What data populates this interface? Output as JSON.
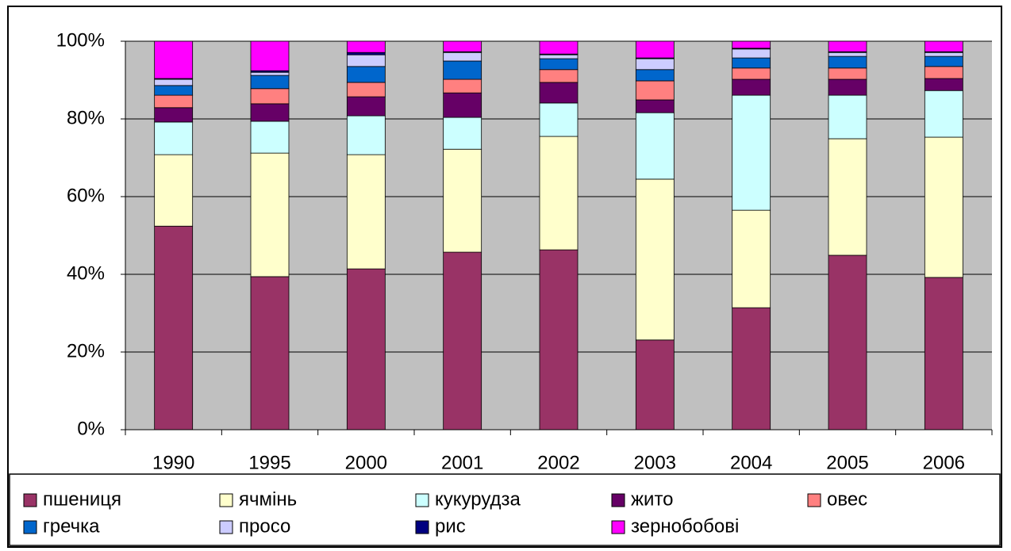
{
  "chart_data": {
    "type": "stacked_bar_100",
    "categories": [
      "1990",
      "1995",
      "2000",
      "2001",
      "2002",
      "2003",
      "2004",
      "2005",
      "2006"
    ],
    "series": [
      {
        "name": "пшениця",
        "color": "#993366",
        "values": [
          52.4,
          39.4,
          41.4,
          45.7,
          46.3,
          23.1,
          31.4,
          44.9,
          39.2
        ]
      },
      {
        "name": "ячмінь",
        "color": "#ffffcc",
        "values": [
          18.4,
          31.8,
          29.4,
          26.5,
          29.2,
          41.4,
          25.1,
          30.0,
          36.1
        ]
      },
      {
        "name": "кукурудза",
        "color": "#ccffff",
        "values": [
          8.4,
          8.2,
          10.0,
          8.2,
          8.6,
          17.1,
          29.6,
          11.2,
          12.0
        ]
      },
      {
        "name": "жито",
        "color": "#660066",
        "values": [
          3.7,
          4.5,
          4.9,
          6.3,
          5.3,
          3.3,
          4.1,
          4.1,
          3.1
        ]
      },
      {
        "name": "овес",
        "color": "#ff8080",
        "values": [
          3.2,
          3.9,
          3.7,
          3.5,
          3.3,
          4.9,
          2.9,
          2.9,
          3.1
        ]
      },
      {
        "name": "гречка",
        "color": "#0066cc",
        "values": [
          2.5,
          3.4,
          4.1,
          4.7,
          2.8,
          2.9,
          2.6,
          3.0,
          2.6
        ]
      },
      {
        "name": "просо",
        "color": "#ccccff",
        "values": [
          1.6,
          0.8,
          3.0,
          2.2,
          1.0,
          2.8,
          2.3,
          1.0,
          1.0
        ]
      },
      {
        "name": "рис",
        "color": "#000080",
        "values": [
          0.2,
          0.4,
          0.6,
          0.2,
          0.2,
          0.2,
          0.2,
          0.2,
          0.2
        ]
      },
      {
        "name": "зернобобові",
        "color": "#ff00ff",
        "values": [
          9.6,
          7.6,
          2.9,
          2.7,
          3.3,
          4.3,
          1.8,
          2.7,
          2.7
        ]
      }
    ],
    "ylim": [
      0,
      100
    ],
    "yticks": [
      {
        "value": 0,
        "label": "0%"
      },
      {
        "value": 20,
        "label": "20%"
      },
      {
        "value": 40,
        "label": "40%"
      },
      {
        "value": 60,
        "label": "60%"
      },
      {
        "value": 80,
        "label": "80%"
      },
      {
        "value": 100,
        "label": "100%"
      }
    ],
    "grid": true,
    "legend": "bottom"
  }
}
